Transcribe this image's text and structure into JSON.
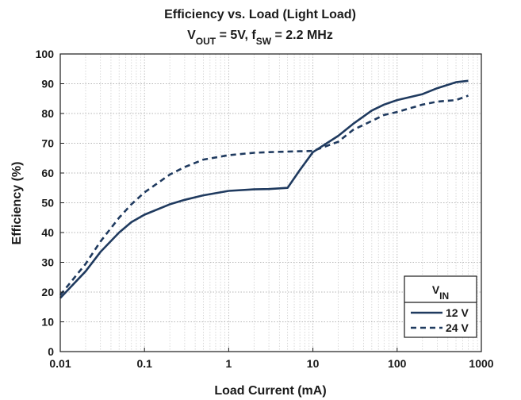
{
  "chart_data": {
    "type": "line",
    "title_line1": "Efficiency vs. Load (Light Load)",
    "title_line2": {
      "parts": [
        "V",
        "OUT",
        " = 5V, f",
        "SW",
        " = 2.2 MHz"
      ]
    },
    "xlabel": "Load Current (mA)",
    "ylabel": "Efficiency (%)",
    "xscale": "log",
    "xlim": [
      0.01,
      1000
    ],
    "ylim": [
      0,
      100
    ],
    "x_ticks": [
      0.01,
      0.1,
      1,
      10,
      100,
      1000
    ],
    "x_tick_labels": [
      "0.01",
      "0.1",
      "1",
      "10",
      "100",
      "1000"
    ],
    "y_ticks": [
      0,
      10,
      20,
      30,
      40,
      50,
      60,
      70,
      80,
      90,
      100
    ],
    "y_tick_labels": [
      "0",
      "10",
      "20",
      "30",
      "40",
      "50",
      "60",
      "70",
      "80",
      "90",
      "100"
    ],
    "grid": true,
    "legend": {
      "title_parts": [
        "V",
        "IN"
      ],
      "placement": "bottom-right"
    },
    "series": [
      {
        "name": "12 V",
        "color": "#1f3a5f",
        "dash": "solid",
        "x": [
          0.01,
          0.02,
          0.03,
          0.05,
          0.07,
          0.1,
          0.2,
          0.3,
          0.5,
          1,
          2,
          3,
          5,
          7,
          10,
          20,
          30,
          50,
          70,
          100,
          200,
          300,
          500,
          700
        ],
        "y": [
          18,
          27,
          33.5,
          40,
          43.5,
          46,
          49.5,
          51,
          52.5,
          54,
          54.5,
          54.6,
          55,
          61,
          67,
          72.5,
          76.5,
          81,
          83,
          84.5,
          86.5,
          88.5,
          90.5,
          91
        ]
      },
      {
        "name": "24 V",
        "color": "#1f3a5f",
        "dash": "dashed",
        "x": [
          0.01,
          0.02,
          0.03,
          0.05,
          0.07,
          0.1,
          0.2,
          0.3,
          0.5,
          1,
          2,
          3,
          5,
          7,
          10,
          20,
          30,
          50,
          70,
          100,
          200,
          300,
          500,
          700
        ],
        "y": [
          19,
          29.5,
          37,
          45,
          49.5,
          53.5,
          59.5,
          62,
          64.5,
          66,
          66.8,
          67,
          67.2,
          67.3,
          67.4,
          70.5,
          74.5,
          77.5,
          79.5,
          80.5,
          83,
          84,
          84.5,
          86
        ]
      }
    ]
  }
}
